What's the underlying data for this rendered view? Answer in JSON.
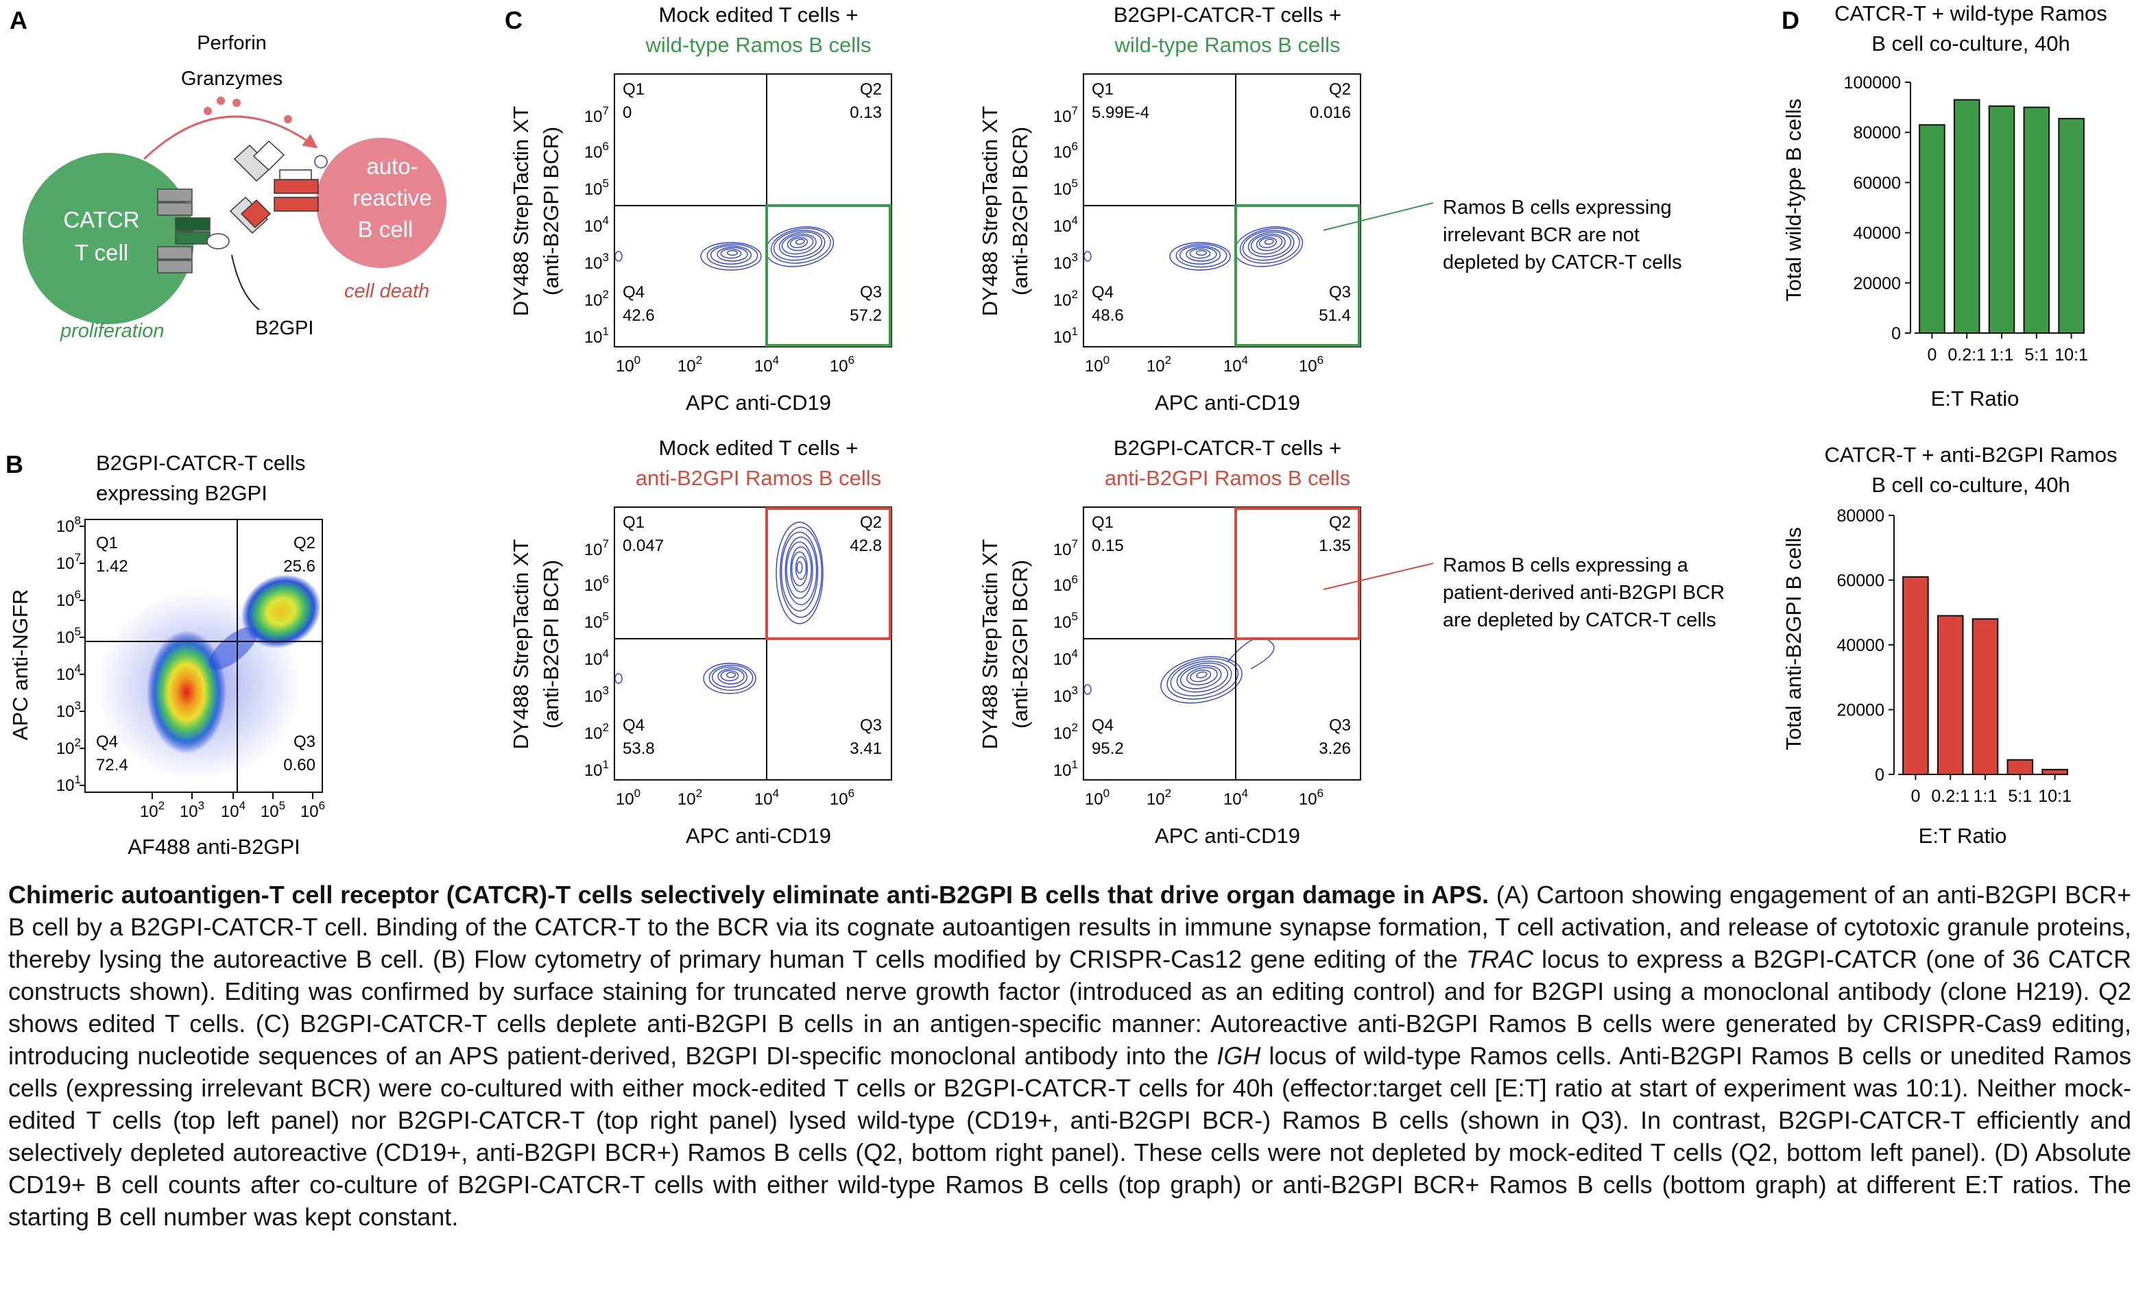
{
  "panels": {
    "A": {
      "letter": "A",
      "perforin": "Perforin",
      "granzymes": "Granzymes",
      "t_cell_l1": "CATCR",
      "t_cell_l2": "T cell",
      "b_cell_l1": "auto-",
      "b_cell_l2": "reactive",
      "b_cell_l3": "B cell",
      "proliferation": "proliferation",
      "cell_death": "cell death",
      "b2gpi": "B2GPI",
      "colors": {
        "t_cell": "#52a866",
        "b_cell": "#e6848f",
        "red": "#d84a3e",
        "green": "#3a9a4a"
      }
    },
    "B": {
      "letter": "B",
      "title_l1": "B2GPI-CATCR-T cells",
      "title_l2": "expressing B2GPI",
      "ylabel": "APC anti-NGFR",
      "xlabel": "AF488 anti-B2GPI",
      "quadrants": {
        "q1": {
          "name": "Q1",
          "value": "1.42"
        },
        "q2": {
          "name": "Q2",
          "value": "25.6"
        },
        "q3": {
          "name": "Q3",
          "value": "0.60"
        },
        "q4": {
          "name": "Q4",
          "value": "72.4"
        }
      }
    },
    "C": {
      "letter": "C",
      "ylabel_l1": "DY488 StrepTactin XT",
      "ylabel_l2": "(anti-B2GPI BCR)",
      "xlabel": "APC anti-CD19",
      "plots": [
        {
          "title_l1": "Mock edited T cells +",
          "title_l2": "wild-type Ramos B cells",
          "q1": "0",
          "q2": "0.13",
          "q3": "57.2",
          "q4": "42.6"
        },
        {
          "title_l1": "B2GPI-CATCR-T cells +",
          "title_l2": "wild-type Ramos B cells",
          "q1": "5.99E-4",
          "q2": "0.016",
          "q3": "51.4",
          "q4": "48.6"
        },
        {
          "title_l1": "Mock edited T cells +",
          "title_l2": "anti-B2GPI Ramos B cells",
          "q1": "0.047",
          "q2": "42.8",
          "q3": "3.41",
          "q4": "53.8"
        },
        {
          "title_l1": "B2GPI-CATCR-T cells +",
          "title_l2": "anti-B2GPI Ramos B cells",
          "q1": "0.15",
          "q2": "1.35",
          "q3": "3.26",
          "q4": "95.2"
        }
      ],
      "quadrant_names": {
        "q1": "Q1",
        "q2": "Q2",
        "q3": "Q3",
        "q4": "Q4"
      },
      "annot_top": [
        "Ramos B cells expressing",
        "irrelevant BCR are not",
        "depleted by CATCR-T cells"
      ],
      "annot_bottom": [
        "Ramos B cells expressing a",
        "patient-derived anti-B2GPI BCR",
        "are depleted by CATCR-T cells"
      ]
    },
    "D": {
      "letter": "D",
      "top_title_l1": "CATCR-T + wild-type Ramos",
      "top_title_l2": "B cell co-culture, 40h",
      "top_ylabel": "Total wild-type B cells",
      "bottom_title_l1": "CATCR-T + anti-B2GPI Ramos",
      "bottom_title_l2": "B cell co-culture, 40h",
      "bottom_ylabel": "Total anti-B2GPI B cells",
      "xlabel": "E:T Ratio"
    }
  },
  "chart_data": [
    {
      "type": "bar",
      "title": "CATCR-T + wild-type Ramos B cell co-culture, 40h",
      "xlabel": "E:T Ratio",
      "ylabel": "Total wild-type B cells",
      "categories": [
        "0",
        "0.2:1",
        "1:1",
        "5:1",
        "10:1"
      ],
      "values": [
        83000,
        93000,
        90500,
        90000,
        85500
      ],
      "ylim": [
        0,
        100000
      ],
      "yticks": [
        0,
        20000,
        40000,
        60000,
        80000,
        100000
      ],
      "color": "#3f9a48"
    },
    {
      "type": "bar",
      "title": "CATCR-T + anti-B2GPI Ramos B cell co-culture, 40h",
      "xlabel": "E:T Ratio",
      "ylabel": "Total anti-B2GPI B cells",
      "categories": [
        "0",
        "0.2:1",
        "1:1",
        "5:1",
        "10:1"
      ],
      "values": [
        61000,
        49000,
        48000,
        4500,
        1500
      ],
      "ylim": [
        0,
        80000
      ],
      "yticks": [
        0,
        20000,
        40000,
        60000,
        80000
      ],
      "color": "#d9453b"
    }
  ],
  "caption": {
    "bold": "Chimeric autoantigen-T cell receptor (CATCR)-T cells selectively eliminate anti-B2GPI B cells that drive organ damage in APS.",
    "p1": " (A) Cartoon showing engagement of an anti-B2GPI BCR+ B cell by a B2GPI-CATCR-T cell. Binding of the CATCR-T to the BCR via its cognate autoantigen results in immune synapse formation, T cell activation, and release of cytotoxic granule proteins, thereby lysing the autoreactive B cell. (B) Flow cytometry of primary human T cells modified by CRISPR-Cas12 gene editing of the ",
    "trac": "TRAC",
    "p2": " locus to express a B2GPI-CATCR (one of 36 CATCR constructs shown). Editing was confirmed by surface staining for truncated nerve growth factor (introduced as an editing control) and for B2GPI using a monoclonal antibody (clone H219). Q2 shows edited T cells. (C) B2GPI-CATCR-T cells deplete anti-B2GPI B cells in an antigen-specific manner: Autoreactive anti-B2GPI Ramos B cells were generated by CRISPR-Cas9 editing, introducing nucleotide sequences of an APS patient-derived, B2GPI DI-specific monoclonal antibody into the ",
    "igh": "IGH",
    "p3": " locus of wild-type Ramos cells. Anti-B2GPI Ramos B cells or unedited Ramos cells (expressing irrelevant BCR) were co-cultured with either mock-edited T cells or B2GPI-CATCR-T cells for 40h (effector:target cell [E:T] ratio at start of experiment was 10:1). Neither mock-edited T cells (top left panel) nor B2GPI-CATCR-T (top right panel) lysed wild-type (CD19+, anti-B2GPI BCR-) Ramos B cells (shown in Q3). In contrast, B2GPI-CATCR-T efficiently and selectively depleted autoreactive (CD19+, anti-B2GPI BCR+) Ramos B cells (Q2, bottom right panel). These cells were not depleted by mock-edited T cells (Q2, bottom left panel). (D) Absolute CD19+ B cell counts after co-culture of B2GPI-CATCR-T cells with either wild-type Ramos B cells (top graph) or anti-B2GPI BCR+ Ramos B cells (bottom graph) at different E:T ratios. The starting B cell number was kept constant."
  }
}
